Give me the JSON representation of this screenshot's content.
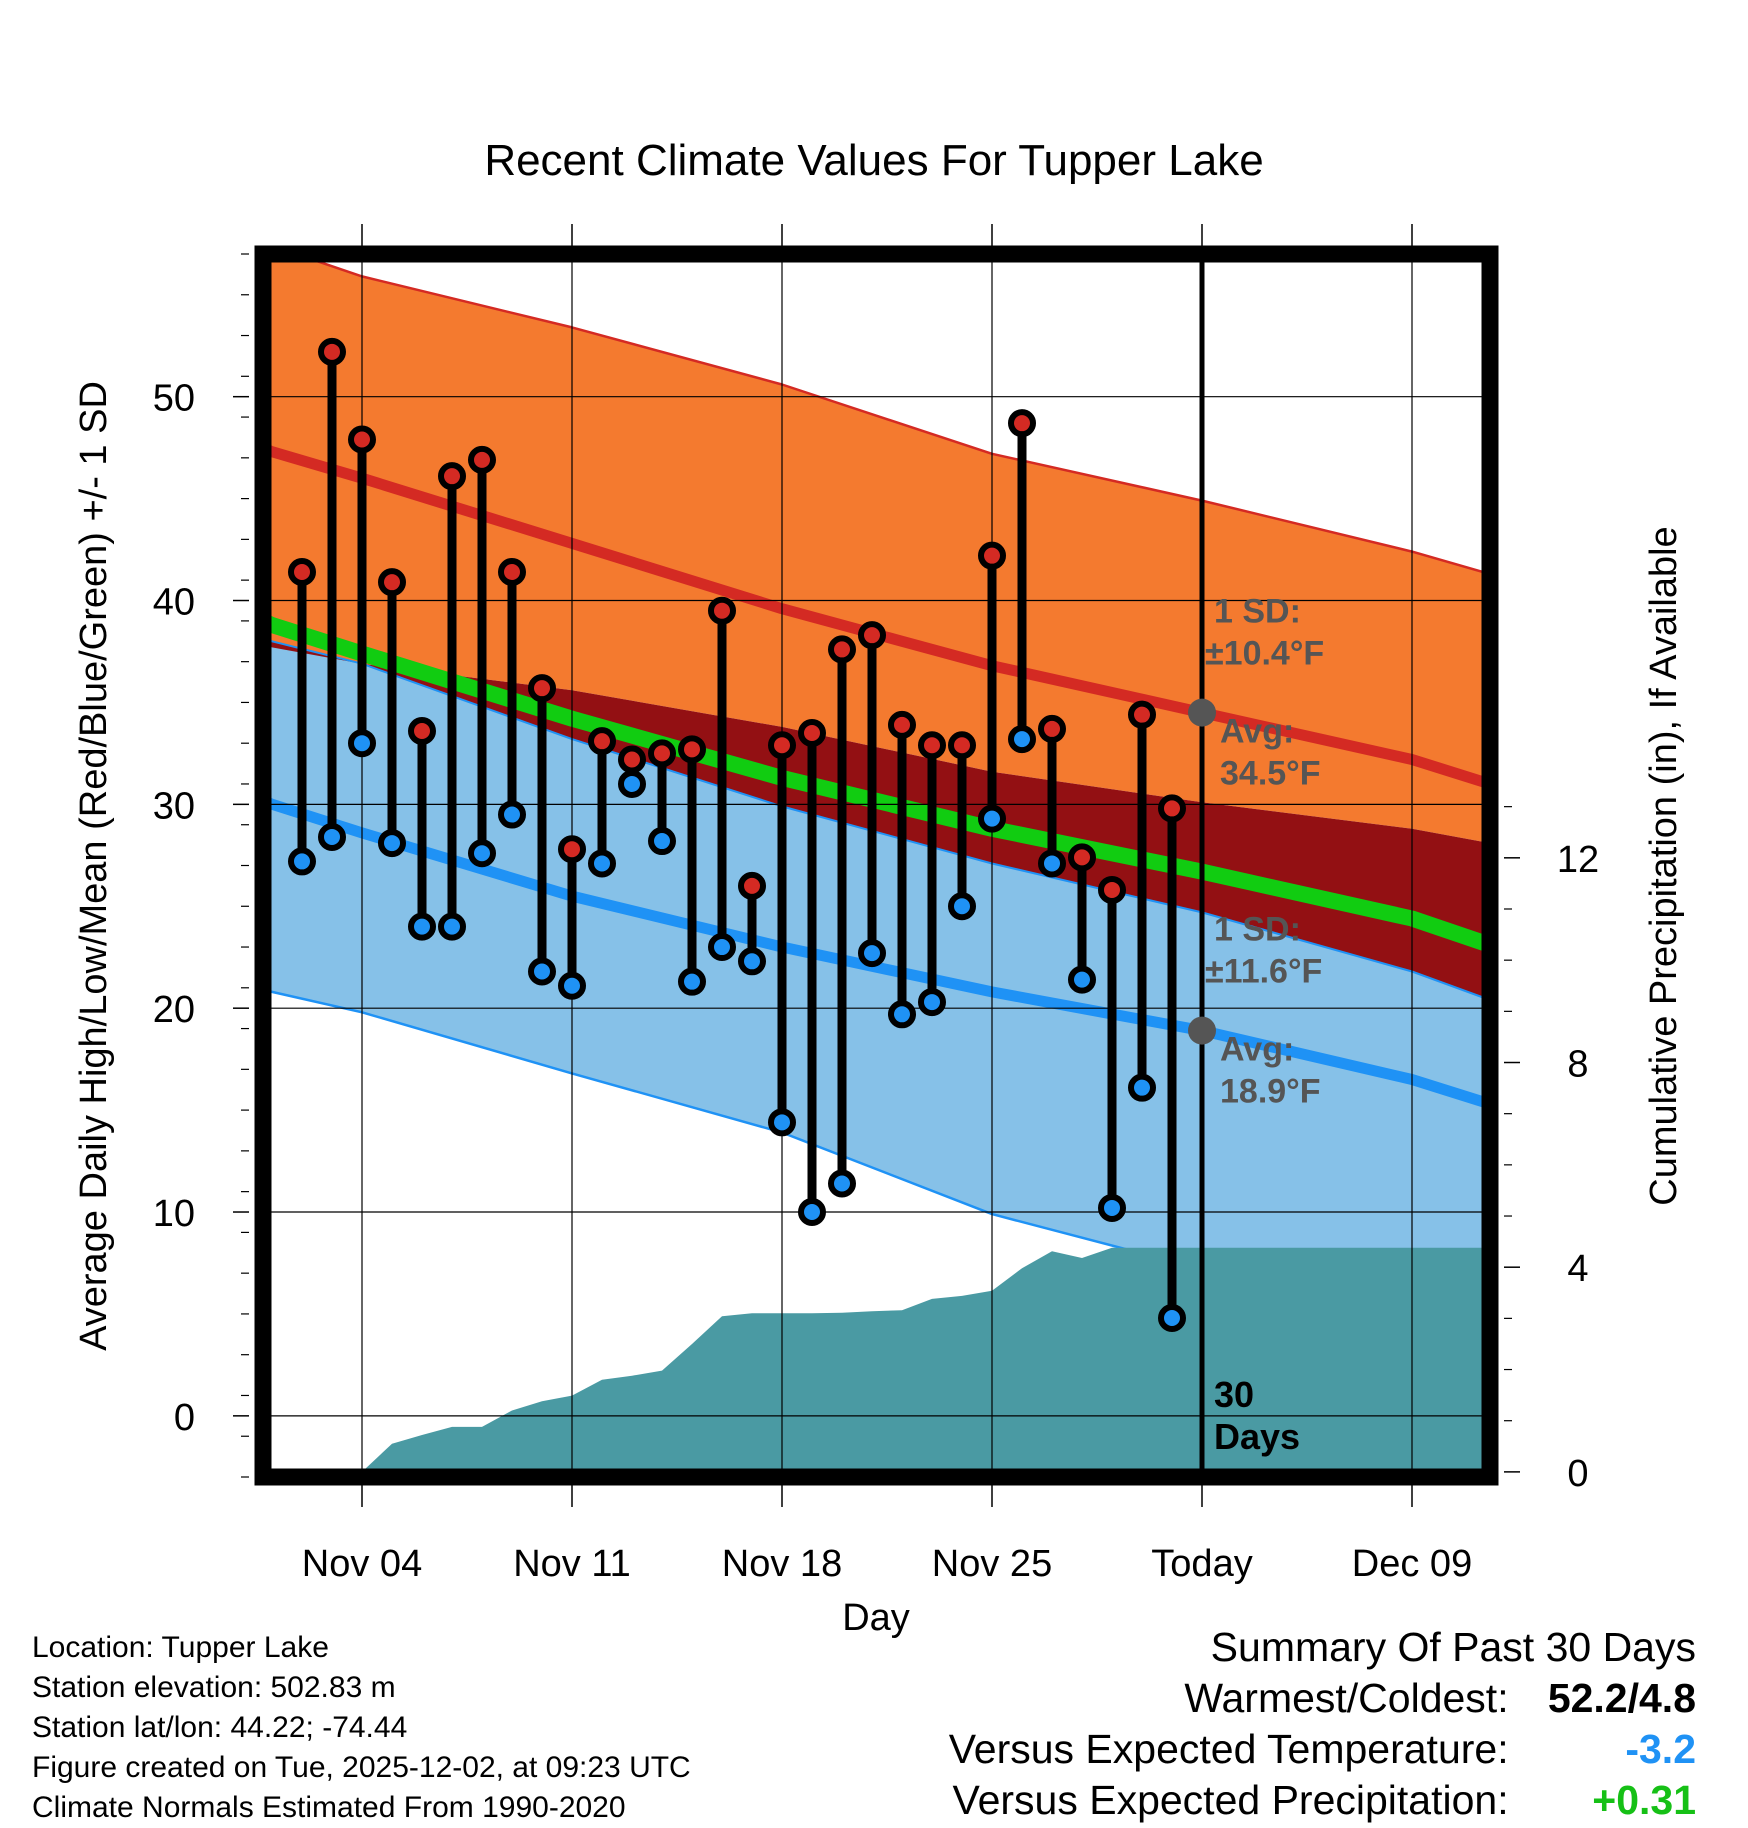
{
  "chart_data": {
    "type": "line",
    "title": "Recent Climate Values For Tupper Lake",
    "xlabel": "Day",
    "ylabel_left": "Average Daily High/Low/Mean (Red/Blue/Green) +/- 1 SD",
    "ylabel_right": "Cumulative Precipitation (in), If Available",
    "x_tick_labels": [
      "Nov 04",
      "Nov 11",
      "Nov 18",
      "Nov 25",
      "Today",
      "Dec 09"
    ],
    "x_tick_days": [
      3,
      10,
      17,
      24,
      31,
      38
    ],
    "xlim_days": [
      -0.3,
      40.6
    ],
    "ylim_left": [
      -3,
      57
    ],
    "y_ticks_left": [
      0,
      10,
      20,
      30,
      40,
      50
    ],
    "ylim_right": [
      -0.1,
      23.8
    ],
    "y_ticks_right": [
      0,
      4,
      8,
      12
    ],
    "today_day": 31,
    "normals": {
      "day": [
        -0.3,
        0,
        3,
        10,
        17,
        24,
        31,
        38,
        40.6
      ],
      "high_mean": [
        47.5,
        47.3,
        46.0,
        42.8,
        39.6,
        36.8,
        34.5,
        32.2,
        31.0
      ],
      "high_upper_sd": [
        57.6,
        57.4,
        55.9,
        53.4,
        50.6,
        47.2,
        44.9,
        42.4,
        41.3
      ],
      "high_lower_sd": [
        37.9,
        37.7,
        36.9,
        35.6,
        33.8,
        31.6,
        30.1,
        28.8,
        28.1
      ],
      "low_mean": [
        30.2,
        30.0,
        28.6,
        25.5,
        23.0,
        20.8,
        18.9,
        16.5,
        15.3
      ],
      "low_upper_sd": [
        38.2,
        38.0,
        36.9,
        33.2,
        29.9,
        27.1,
        24.7,
        21.8,
        20.4
      ],
      "low_lower_sd": [
        21.0,
        20.8,
        19.8,
        16.8,
        13.9,
        9.9,
        7.2,
        5.0,
        4.0
      ],
      "mean": [
        39.0,
        38.8,
        37.4,
        34.2,
        31.3,
        28.8,
        26.7,
        24.4,
        23.1
      ]
    },
    "daily": {
      "day": [
        1,
        2,
        3,
        4,
        5,
        6,
        7,
        8,
        9,
        10,
        11,
        12,
        13,
        14,
        15,
        16,
        17,
        18,
        19,
        20,
        21,
        22,
        23,
        24,
        25,
        26,
        27,
        28,
        29,
        30
      ],
      "high": [
        41.4,
        52.2,
        47.9,
        40.9,
        33.6,
        46.1,
        46.9,
        41.4,
        35.7,
        27.8,
        33.1,
        32.2,
        32.5,
        32.7,
        39.5,
        26.0,
        32.9,
        33.5,
        37.6,
        38.3,
        33.9,
        32.9,
        32.9,
        42.2,
        48.7,
        33.7,
        27.4,
        25.8,
        34.4,
        29.8
      ],
      "low": [
        27.2,
        28.4,
        33.0,
        28.1,
        24.0,
        24.0,
        27.6,
        29.5,
        21.8,
        21.1,
        27.1,
        31.0,
        28.2,
        21.3,
        23.0,
        22.3,
        14.4,
        10.0,
        11.4,
        22.7,
        19.7,
        20.3,
        25.0,
        29.3,
        33.2,
        27.1,
        21.4,
        10.2,
        16.1,
        4.8
      ]
    },
    "precip": {
      "day": [
        -0.3,
        3,
        4,
        5,
        6,
        7,
        8,
        9,
        10,
        11,
        12,
        13,
        14,
        15,
        16,
        17,
        18,
        19,
        20,
        21,
        22,
        23,
        24,
        25,
        26,
        27,
        28,
        29,
        30,
        31,
        40.6
      ],
      "cumulative": [
        0,
        0,
        0.55,
        0.72,
        0.88,
        0.88,
        1.2,
        1.38,
        1.49,
        1.8,
        1.88,
        1.98,
        2.5,
        3.04,
        3.1,
        3.1,
        3.1,
        3.11,
        3.14,
        3.16,
        3.38,
        3.44,
        3.54,
        3.98,
        4.31,
        4.18,
        4.38,
        4.38,
        4.38,
        4.38,
        4.38
      ]
    },
    "annotations": {
      "high_sd": "1 SD:",
      "high_sd_value": "±10.4°F",
      "high_avg_label": "Avg:",
      "high_avg_value": "34.5°F",
      "high_avg_point": 34.5,
      "low_sd": "1 SD:",
      "low_sd_value": "±11.6°F",
      "low_avg_label": "Avg:",
      "low_avg_value": "18.9°F",
      "low_avg_point": 18.9,
      "days_line1": "30",
      "days_line2": "Days"
    },
    "colors": {
      "high_band": "#f47a2f",
      "high_line": "#d42a23",
      "overlap_band": "#931013",
      "low_band": "#86c1e8",
      "low_line": "#1f92f5",
      "mean_line": "#11cc11",
      "precip": "#4a9aa3",
      "annotation": "#555555"
    }
  },
  "footer": {
    "location": "Location: Tupper Lake",
    "elevation": "Station elevation: 502.83 m",
    "latlon": "Station lat/lon: 44.22; -74.44",
    "created": "Figure created on Tue, 2025-12-02, at 09:23 UTC",
    "normals": "Climate Normals Estimated From 1990-2020"
  },
  "summary": {
    "title": "Summary Of Past 30 Days",
    "warmest_label": "Warmest/Coldest:",
    "warmest_value": "52.2/4.8",
    "temp_label": "Versus Expected Temperature:",
    "temp_value": "-3.2",
    "temp_color": "#1f92f5",
    "precip_label": "Versus Expected Precipitation:",
    "precip_value": "+0.31",
    "precip_color": "#16c016"
  }
}
